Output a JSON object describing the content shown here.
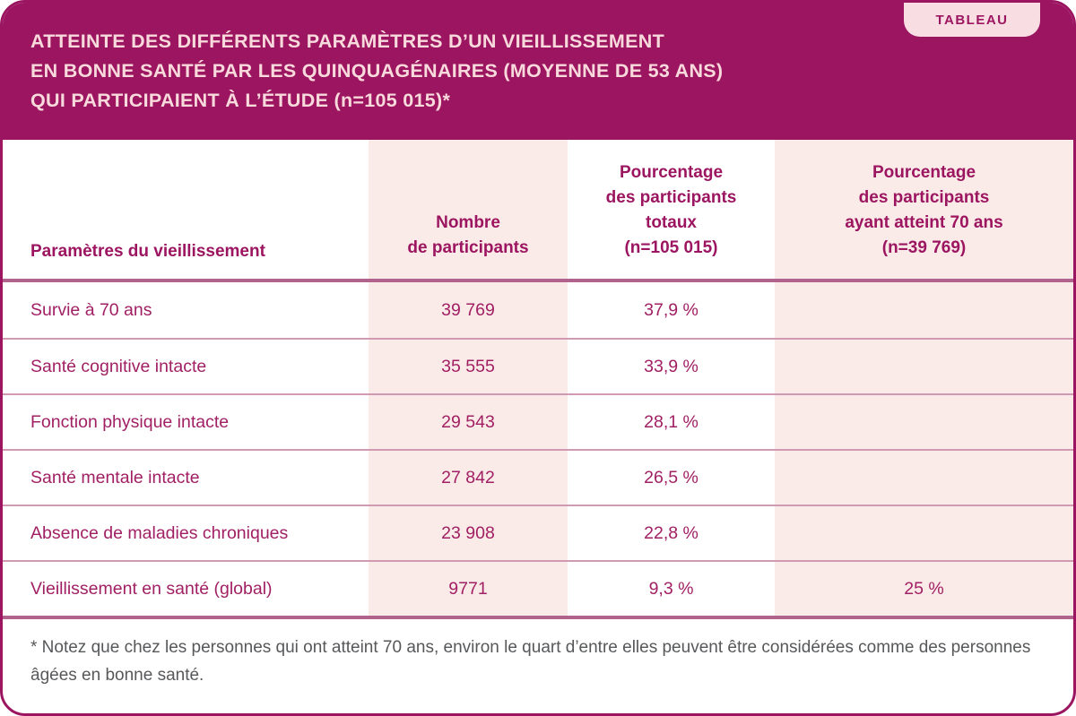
{
  "badge_label": "TABLEAU",
  "colors": {
    "header_bg": "#9c1560",
    "title_text": "#f8d9dc",
    "badge_bg": "#f8dde2",
    "pink_column_bg": "#fbebe8",
    "body_text": "#a12064",
    "row_separator": "#cf9ab2",
    "section_separator": "#b2638d",
    "footnote_text": "#57585a"
  },
  "chart_data": {
    "type": "table",
    "title": "ATTEINTE DES DIFFÉRENTS PARAMÈTRES D’UN VIEILLISSEMENT EN BONNE SANTÉ PAR LES QUINQUAGÉNAIRES (MOYENNE DE 53 ANS) QUI PARTICIPAIENT À L’ÉTUDE (n=105 015)*",
    "title_lines": [
      "ATTEINTE DES DIFFÉRENTS PARAMÈTRES D’UN VIEILLISSEMENT",
      "EN BONNE SANTÉ PAR LES QUINQUAGÉNAIRES (MOYENNE DE 53 ANS)",
      "QUI PARTICIPAIENT À L’ÉTUDE (n=105 015)*"
    ],
    "columns": [
      "Paramètres du vieillissement",
      "Nombre\nde participants",
      "Pourcentage\ndes participants\ntotaux\n(n=105 015)",
      "Pourcentage\ndes participants\nayant atteint 70 ans\n(n=39 769)"
    ],
    "rows": [
      [
        "Survie à 70 ans",
        "39 769",
        "37,9 %",
        ""
      ],
      [
        "Santé cognitive intacte",
        "35 555",
        "33,9 %",
        ""
      ],
      [
        "Fonction physique intacte",
        "29 543",
        "28,1 %",
        ""
      ],
      [
        "Santé mentale intacte",
        "27 842",
        "26,5 %",
        ""
      ],
      [
        "Absence de maladies chroniques",
        "23 908",
        "22,8 %",
        ""
      ],
      [
        "Vieillissement en santé (global)",
        "9771",
        "9,3 %",
        "25 %"
      ]
    ],
    "footnote": "* Notez que chez les personnes qui ont atteint 70 ans, environ le quart d’entre elles peuvent être considérées comme des personnes âgées en bonne santé."
  }
}
